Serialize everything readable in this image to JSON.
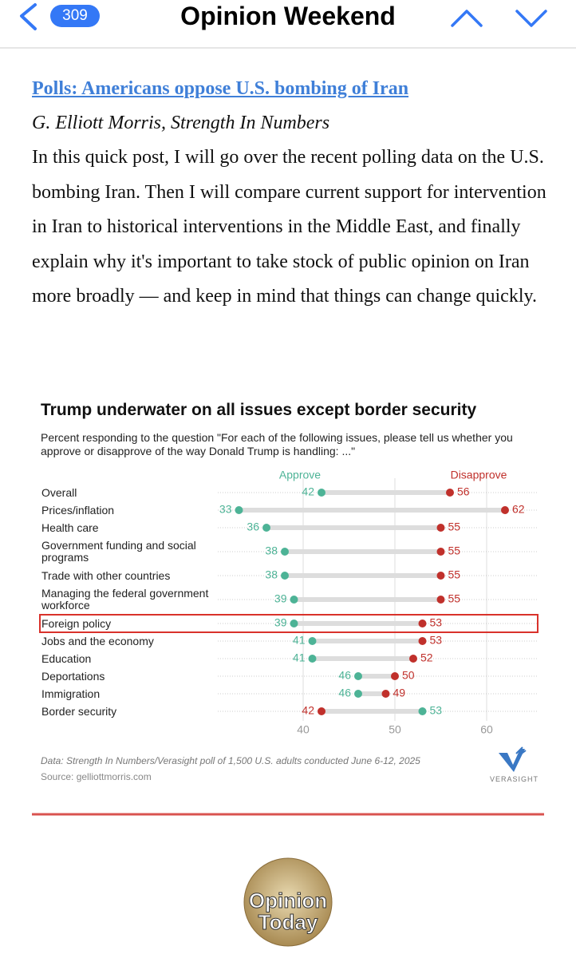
{
  "header": {
    "badge": "309",
    "title": "Opinion Weekend"
  },
  "article": {
    "headline": "Polls: Americans oppose U.S. bombing of Iran",
    "byline": "G. Elliott Morris, Strength In Numbers",
    "body": "In this quick post, I will go over the recent polling data on the U.S. bombing Iran. Then I will compare current support for intervention in Iran to historical interventions in the Middle East, and finally explain why it's important to take stock of public opinion on Iran more broadly — and keep in mind that things can change quickly."
  },
  "chart_data": {
    "type": "dumbbell",
    "title": "Trump underwater on all issues except border security",
    "subtitle": "Percent responding to the question \"For each of the following issues, please tell us whether you approve or disapprove of the way Donald Trump is handling: ...\"",
    "categories": [
      "Overall",
      "Prices/inflation",
      "Health care",
      "Government funding and social programs",
      "Trade with other countries",
      "Managing the federal government workforce",
      "Foreign policy",
      "Jobs and the economy",
      "Education",
      "Deportations",
      "Immigration",
      "Border security"
    ],
    "series": [
      {
        "name": "Approve",
        "color": "#4db396",
        "values": [
          42,
          33,
          36,
          38,
          38,
          39,
          39,
          41,
          41,
          46,
          46,
          53
        ]
      },
      {
        "name": "Disapprove",
        "color": "#c0302b",
        "values": [
          56,
          62,
          55,
          55,
          55,
          55,
          53,
          53,
          52,
          50,
          49,
          42
        ]
      }
    ],
    "xlim": [
      31,
      65
    ],
    "xticks": [
      40,
      50,
      60
    ],
    "grid": true,
    "highlight": "Foreign policy",
    "note": "Data: Strength In Numbers/Verasight poll of 1,500 U.S. adults conducted June 6-12, 2025",
    "source": "Source: gelliottmorris.com",
    "brand": "VERASIGHT"
  },
  "footer": {
    "logo_lines": [
      "Opinion",
      "Today"
    ]
  }
}
